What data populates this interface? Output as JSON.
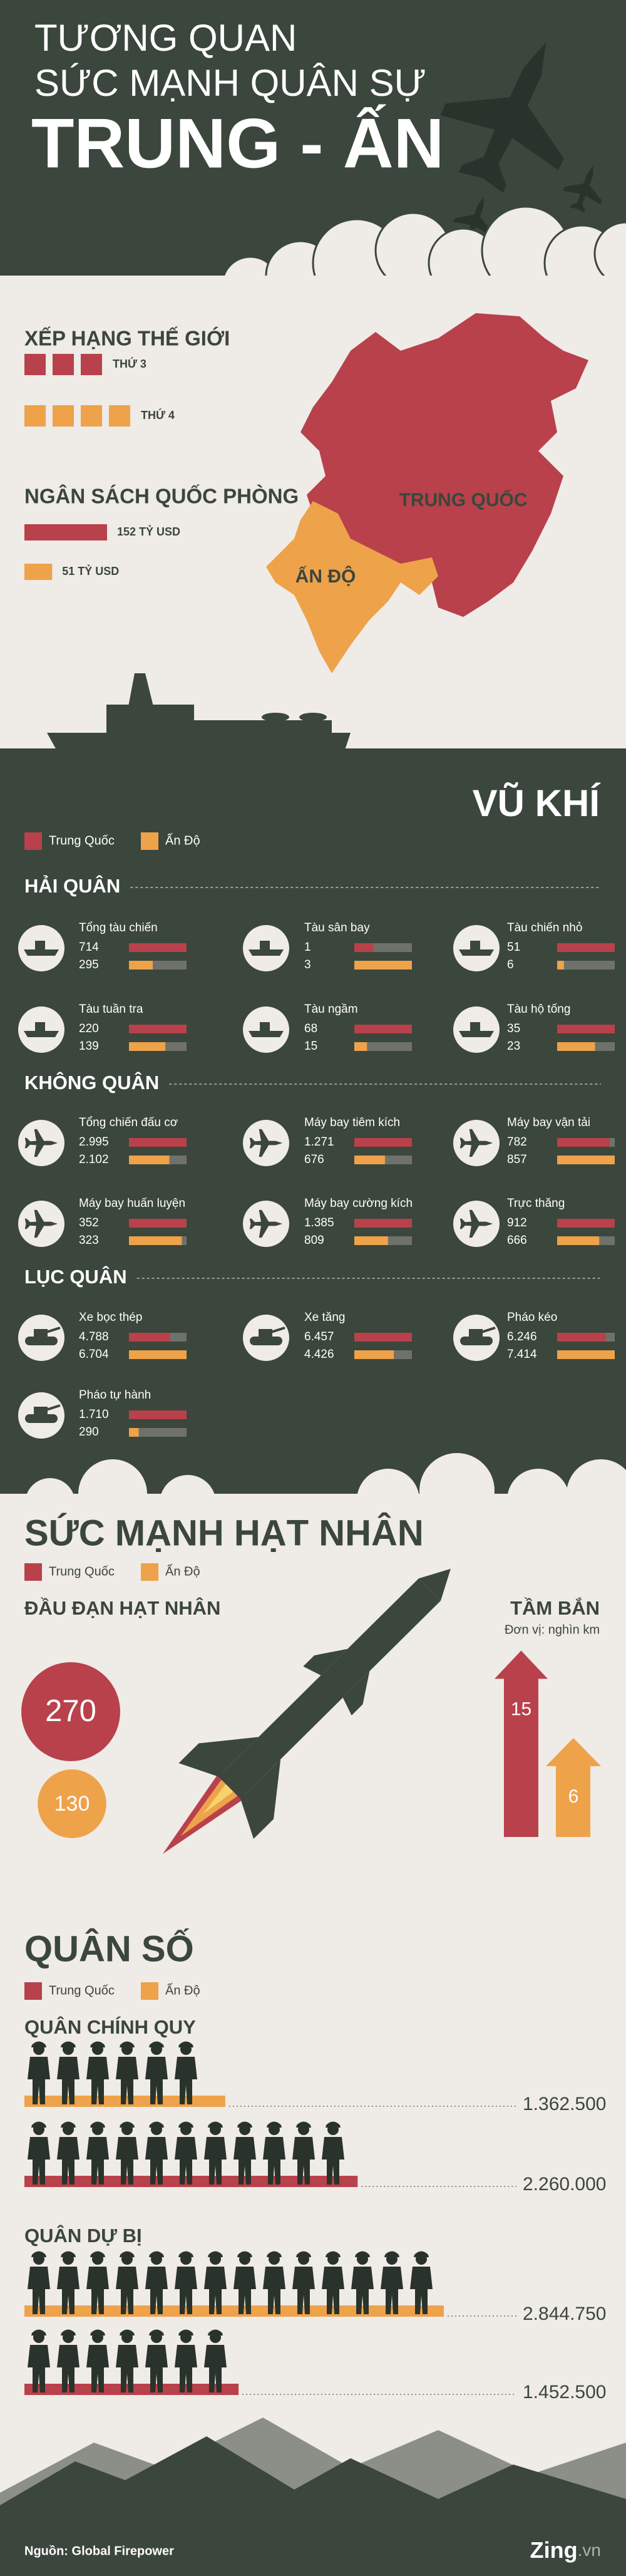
{
  "header": {
    "title_line1": "TƯƠNG QUAN",
    "title_line2": "SỨC MẠNH QUÂN SỰ",
    "title_line3": "TRUNG - ẤN"
  },
  "legend": {
    "china": "Trung Quốc",
    "india": "Ấn Độ",
    "china_color": "#b8414b",
    "india_color": "#eea24a"
  },
  "ranking": {
    "title": "XẾP HẠNG THẾ GIỚI",
    "china": {
      "value": 3,
      "label": "THỨ 3"
    },
    "india": {
      "value": 4,
      "label": "THỨ 4"
    }
  },
  "budget": {
    "title": "NGÂN SÁCH QUỐC PHÒNG",
    "china": {
      "value": 152,
      "label": "152 TỶ USD"
    },
    "india": {
      "value": 51,
      "label": "51 TỶ USD"
    }
  },
  "map": {
    "china": "TRUNG QUỐC",
    "india": "ẤN ĐỘ"
  },
  "weapons": {
    "title": "VŨ KHÍ",
    "groups": [
      {
        "title": "HẢI QUÂN",
        "items": [
          {
            "name": "Tổng tàu chiến",
            "china": 714,
            "india": 295
          },
          {
            "name": "Tàu sân bay",
            "china": 1,
            "india": 3
          },
          {
            "name": "Tàu chiến nhỏ",
            "china": 51,
            "india": 6
          },
          {
            "name": "Tàu tuần tra",
            "china": 220,
            "india": 139
          },
          {
            "name": "Tàu ngầm",
            "china": 68,
            "india": 15
          },
          {
            "name": "Tàu hộ tống",
            "china": 35,
            "india": 23
          }
        ]
      },
      {
        "title": "KHÔNG QUÂN",
        "items": [
          {
            "name": "Tổng chiến đấu cơ",
            "china": {
              "value": 2995,
              "label": "2.995"
            },
            "india": {
              "value": 2102,
              "label": "2.102"
            }
          },
          {
            "name": "Máy bay tiêm kích",
            "china": {
              "value": 1271,
              "label": "1.271"
            },
            "india": 676
          },
          {
            "name": "Máy bay vận tải",
            "china": 782,
            "india": 857
          },
          {
            "name": "Máy bay huấn luyện",
            "china": 352,
            "india": 323
          },
          {
            "name": "Máy bay cường kích",
            "china": {
              "value": 1385,
              "label": "1.385"
            },
            "india": 809
          },
          {
            "name": "Trực thăng",
            "china": 912,
            "india": 666
          }
        ]
      },
      {
        "title": "LỤC QUÂN",
        "items": [
          {
            "name": "Xe bọc thép",
            "china": {
              "value": 4788,
              "label": "4.788"
            },
            "india": {
              "value": 6704,
              "label": "6.704"
            }
          },
          {
            "name": "Xe tăng",
            "china": {
              "value": 6457,
              "label": "6.457"
            },
            "india": {
              "value": 4426,
              "label": "4.426"
            }
          },
          {
            "name": "Pháo kéo",
            "china": {
              "value": 6246,
              "label": "6.246"
            },
            "india": {
              "value": 7414,
              "label": "7.414"
            }
          },
          {
            "name": "Pháo tự hành",
            "china": {
              "value": 1710,
              "label": "1.710"
            },
            "india": 290
          }
        ]
      }
    ]
  },
  "nuclear": {
    "title": "SỨC MẠNH HẠT NHÂN",
    "warheads_title": "ĐẦU ĐẠN HẠT NHÂN",
    "warheads": {
      "china": 270,
      "india": 130
    },
    "range_title": "TẦM BẮN",
    "range_unit": "Đơn vị: nghìn km",
    "range": {
      "china": 15,
      "india": 6
    }
  },
  "personnel": {
    "title": "QUÂN SỐ",
    "groups": [
      {
        "title": "QUÂN CHÍNH QUY",
        "rows": [
          {
            "color": "#eea24a",
            "value": 1362500,
            "label": "1.362.500"
          },
          {
            "color": "#b8414b",
            "value": 2260000,
            "label": "2.260.000"
          }
        ]
      },
      {
        "title": "QUÂN DỰ BỊ",
        "rows": [
          {
            "color": "#eea24a",
            "value": 2844750,
            "label": "2.844.750"
          },
          {
            "color": "#b8414b",
            "value": 1452500,
            "label": "1.452.500"
          }
        ]
      }
    ]
  },
  "footer": {
    "source": "Nguồn: Global Firepower",
    "logo": "Zing",
    "logo_suffix": ".vn"
  }
}
